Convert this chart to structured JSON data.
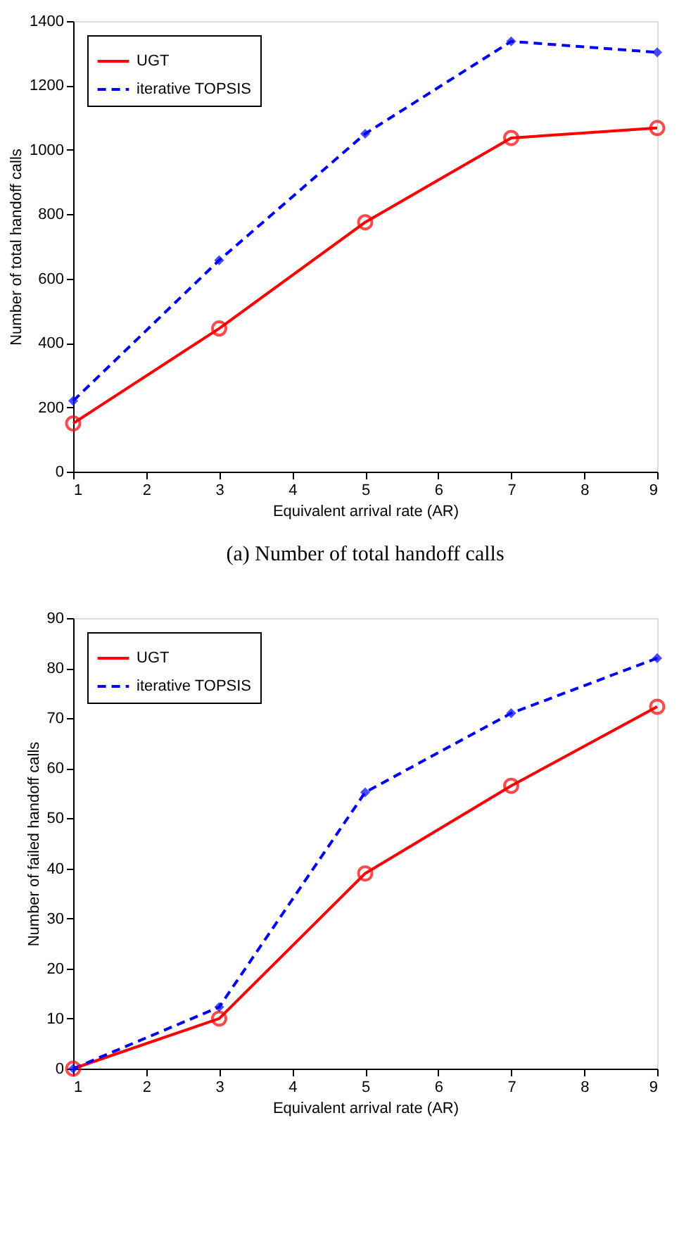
{
  "chart_data": [
    {
      "type": "line",
      "xlabel": "Equivalent arrival rate (AR)",
      "ylabel": "Number of total handoff calls",
      "annotations": [
        "(a)  Number of total handoff calls"
      ],
      "x": [
        1,
        3,
        5,
        7,
        9
      ],
      "xlim": [
        1,
        9
      ],
      "xticks": [
        1,
        2,
        3,
        4,
        5,
        6,
        7,
        8,
        9
      ],
      "ylim": [
        0,
        1400
      ],
      "yticks": [
        0,
        200,
        400,
        600,
        800,
        1000,
        1200,
        1400
      ],
      "grid": false,
      "legend": "top left",
      "series": [
        {
          "name": "UGT",
          "color": "#ff0000",
          "marker": "circle",
          "line_style": "solid",
          "values": [
            150,
            445,
            775,
            1037,
            1068
          ]
        },
        {
          "name": "iterative TOPSIS",
          "color": "#0000ff",
          "marker": "diamond",
          "line_style": "dashed",
          "values": [
            220,
            657,
            1050,
            1337,
            1303
          ]
        }
      ]
    },
    {
      "type": "line",
      "xlabel": "Equivalent arrival rate (AR)",
      "ylabel": "Number of failed handoff calls",
      "x": [
        1,
        3,
        5,
        7,
        9
      ],
      "xlim": [
        1,
        9
      ],
      "xticks": [
        1,
        2,
        3,
        4,
        5,
        6,
        7,
        8,
        9
      ],
      "ylim": [
        0,
        90
      ],
      "yticks": [
        0,
        10,
        20,
        30,
        40,
        50,
        60,
        70,
        80,
        90
      ],
      "grid": false,
      "legend": "top left",
      "series": [
        {
          "name": "UGT",
          "color": "#ff0000",
          "marker": "circle",
          "line_style": "solid",
          "values": [
            0,
            10,
            39,
            56.5,
            72.3
          ]
        },
        {
          "name": "iterative TOPSIS",
          "color": "#0000ff",
          "marker": "diamond",
          "line_style": "dashed",
          "values": [
            0,
            12.3,
            55.2,
            71,
            82
          ]
        }
      ]
    }
  ]
}
